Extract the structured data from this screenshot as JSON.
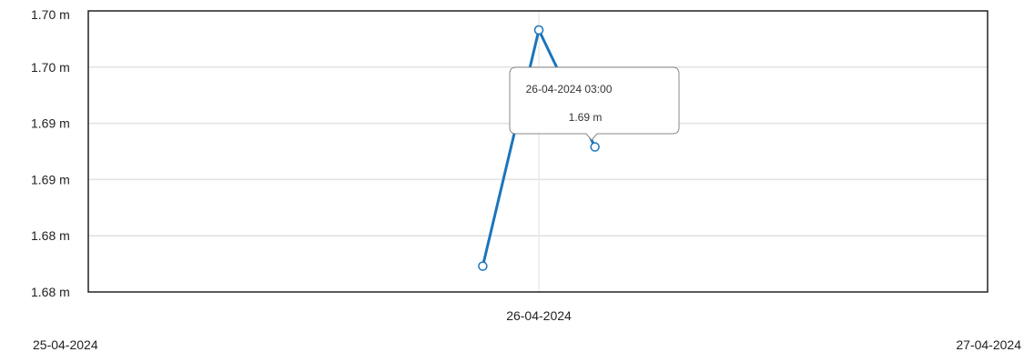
{
  "chart_data": {
    "type": "line",
    "title": "",
    "xlabel": "",
    "ylabel": "",
    "y_unit": "m",
    "xlim": [
      "2024-04-25 00:00",
      "2024-04-27 00:00"
    ],
    "ylim": [
      1.675,
      1.7
    ],
    "y_ticks": [
      {
        "value": 1.675,
        "label": "1.68 m"
      },
      {
        "value": 1.68,
        "label": "1.68 m"
      },
      {
        "value": 1.685,
        "label": "1.69 m"
      },
      {
        "value": 1.69,
        "label": "1.69 m"
      },
      {
        "value": 1.695,
        "label": "1.70 m"
      },
      {
        "value": 1.7,
        "label": "1.70 m"
      }
    ],
    "x_ticks": [
      {
        "value": "2024-04-25 00:00",
        "label": "25-04-2024"
      },
      {
        "value": "2024-04-26 00:00",
        "label": "26-04-2024"
      },
      {
        "value": "2024-04-27 00:00",
        "label": "27-04-2024"
      }
    ],
    "grid": true,
    "series": [
      {
        "color": "#1a75bc",
        "points": [
          {
            "x": "2024-04-25 21:00",
            "y": 1.6773
          },
          {
            "x": "2024-04-26 00:00",
            "y": 1.6983
          },
          {
            "x": "2024-04-26 03:00",
            "y": 1.6879
          }
        ]
      }
    ],
    "tooltip": {
      "x": "2024-04-26 03:00",
      "date_label": "26-04-2024 03:00",
      "value_label": "1.69 m"
    }
  }
}
